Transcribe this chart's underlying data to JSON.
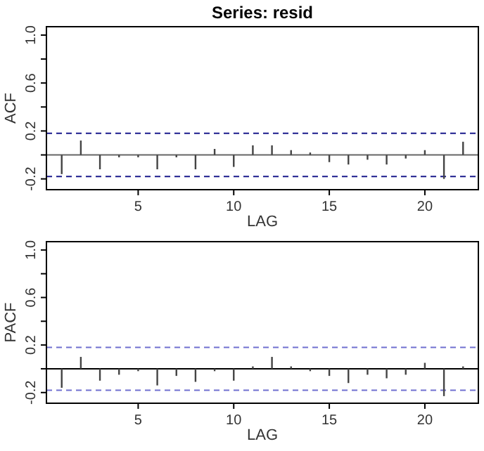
{
  "chart_data": [
    {
      "type": "bar",
      "title": "Series:  resid",
      "xlabel": "LAG",
      "ylabel": "ACF",
      "x": [
        1,
        2,
        3,
        4,
        5,
        6,
        7,
        8,
        9,
        10,
        11,
        12,
        13,
        14,
        15,
        16,
        17,
        18,
        19,
        20,
        21,
        22
      ],
      "series": [
        {
          "color": "#444444",
          "values": [
            -0.16,
            0.12,
            -0.12,
            -0.02,
            -0.02,
            -0.12,
            -0.02,
            -0.12,
            0.05,
            -0.1,
            0.08,
            0.08,
            0.04,
            0.02,
            -0.06,
            -0.08,
            -0.04,
            -0.08,
            -0.03,
            0.04,
            -0.2,
            0.11
          ]
        }
      ],
      "xlim": [
        0.2,
        22.8
      ],
      "xticks": [
        5,
        10,
        15,
        20
      ],
      "ylim": [
        -0.29,
        1.07
      ],
      "yticks": [
        -0.2,
        {
          "value": 0,
          "label": null
        },
        0.2,
        {
          "value": 0.4,
          "label": null
        },
        0.6,
        {
          "value": 0.8,
          "label": null
        },
        {
          "value": 1,
          "label": "1.0"
        }
      ],
      "ref_lines": [
        {
          "axis": "y",
          "value": 0,
          "color": "#666666",
          "line_style": "solid"
        },
        {
          "axis": "y",
          "value": 0.18,
          "color": "#1a1a8c",
          "line_style": "dashed"
        },
        {
          "axis": "y",
          "value": -0.18,
          "color": "#1a1a8c",
          "line_style": "dashed"
        }
      ]
    },
    {
      "type": "bar",
      "xlabel": "LAG",
      "ylabel": "PACF",
      "x": [
        1,
        2,
        3,
        4,
        5,
        6,
        7,
        8,
        9,
        10,
        11,
        12,
        13,
        14,
        15,
        16,
        17,
        18,
        19,
        20,
        21,
        22
      ],
      "series": [
        {
          "color": "#444444",
          "values": [
            -0.16,
            0.1,
            -0.1,
            -0.05,
            -0.02,
            -0.14,
            -0.06,
            -0.11,
            -0.02,
            -0.1,
            0.02,
            0.1,
            0.02,
            -0.02,
            -0.06,
            -0.12,
            -0.05,
            -0.08,
            -0.05,
            0.05,
            -0.23,
            0.02
          ]
        }
      ],
      "xlim": [
        0.2,
        22.8
      ],
      "xticks": [
        5,
        10,
        15,
        20
      ],
      "ylim": [
        -0.29,
        1.07
      ],
      "yticks": [
        -0.2,
        {
          "value": 0,
          "label": null
        },
        0.2,
        {
          "value": 0.4,
          "label": null
        },
        0.6,
        {
          "value": 0.8,
          "label": null
        },
        {
          "value": 1,
          "label": "1.0"
        }
      ],
      "ref_lines": [
        {
          "axis": "y",
          "value": 0,
          "color": "#000000",
          "line_style": "solid"
        },
        {
          "axis": "y",
          "value": 0.18,
          "color": "#7070d0",
          "line_style": "dashed"
        },
        {
          "axis": "y",
          "value": -0.18,
          "color": "#7070d0",
          "line_style": "dashed"
        }
      ]
    }
  ]
}
